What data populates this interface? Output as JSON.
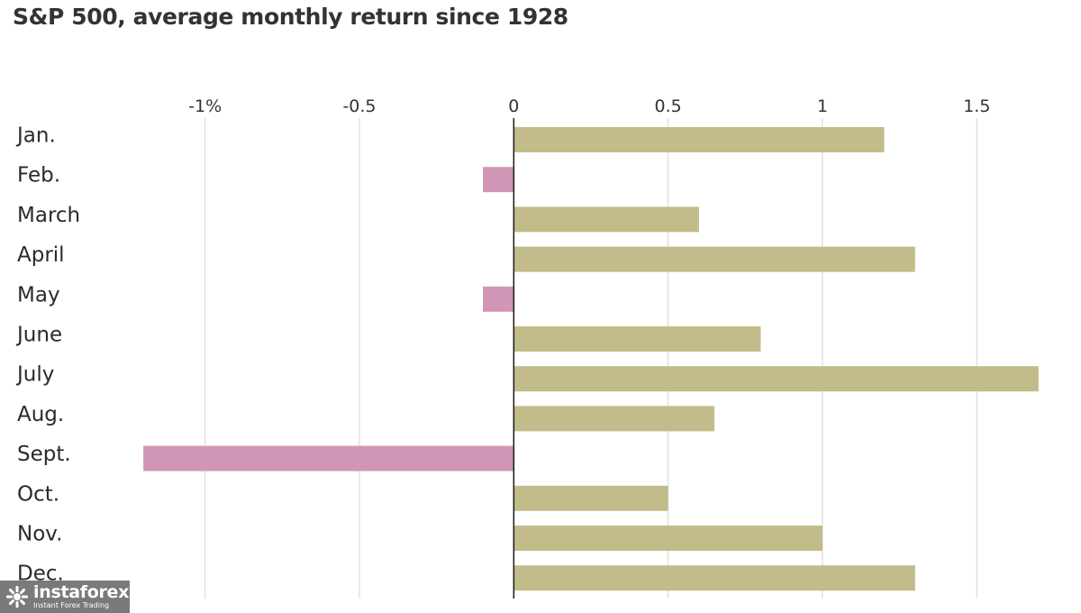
{
  "chart_data": {
    "type": "bar",
    "orientation": "horizontal",
    "title": "S&P 500, average monthly return since 1928",
    "xlabel": "",
    "ylabel": "",
    "categories": [
      "Jan.",
      "Feb.",
      "March",
      "April",
      "May",
      "June",
      "July",
      "Aug.",
      "Sept.",
      "Oct.",
      "Nov.",
      "Dec."
    ],
    "values": [
      1.2,
      -0.1,
      0.6,
      1.3,
      -0.1,
      0.8,
      1.7,
      0.65,
      -1.2,
      0.5,
      1.0,
      1.3
    ],
    "xlim": [
      -1.25,
      1.75
    ],
    "xticks": [
      -1,
      -0.5,
      0,
      0.5,
      1,
      1.5
    ],
    "xtick_labels": [
      "-1%",
      "-0.5",
      "0",
      "0.5",
      "1",
      "1.5"
    ],
    "grid": true,
    "colors": {
      "positive": "#c2bb8a",
      "negative": "#d196b6",
      "grid": "#e2e2e2",
      "zero_line": "#1a1a1a"
    }
  },
  "watermark": {
    "brand": "instaforex",
    "tagline": "Instant Forex Trading",
    "icon": "instaforex-logo-icon"
  }
}
